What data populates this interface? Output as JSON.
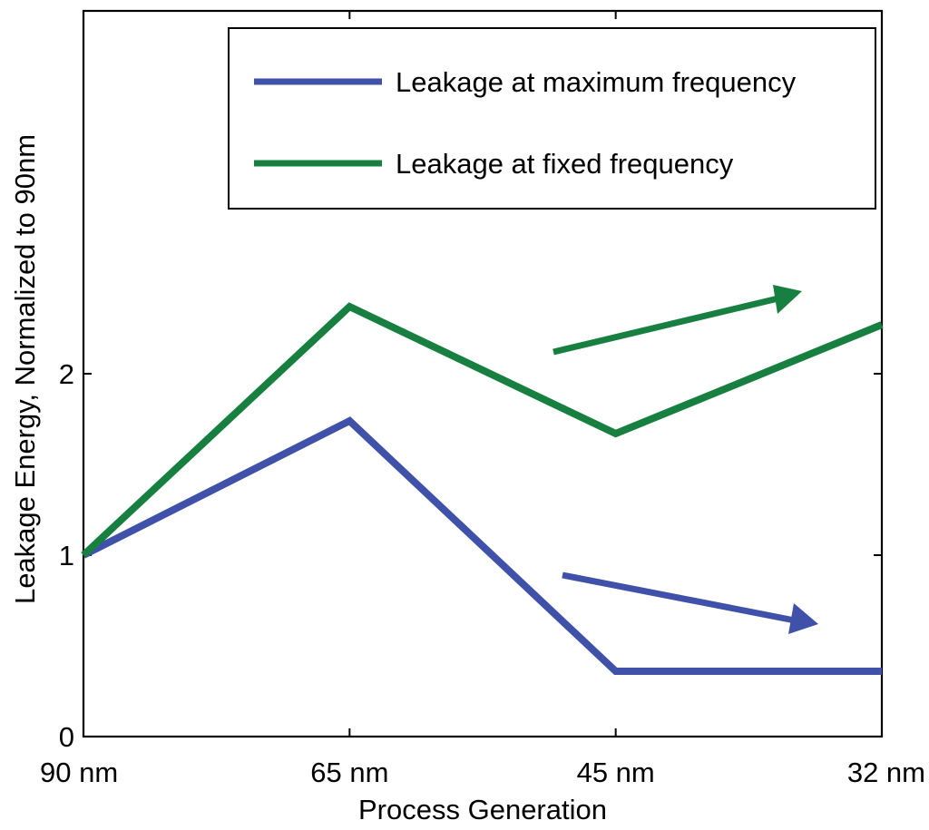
{
  "chart_data": {
    "type": "line",
    "title": "",
    "xlabel": "Process Generation",
    "ylabel": "Leakage Energy, Normalized to 90nm",
    "categories": [
      "90 nm",
      "65 nm",
      "45 nm",
      "32 nm"
    ],
    "ylim": [
      0,
      4
    ],
    "yticks": [
      0,
      1,
      2
    ],
    "grid": false,
    "legend_position": "top-right",
    "series": [
      {
        "name": "Leakage at maximum frequency",
        "color": "#3f51a8",
        "values": [
          1.0,
          1.74,
          0.36,
          0.36
        ]
      },
      {
        "name": "Leakage at fixed frequency",
        "color": "#178040",
        "values": [
          1.0,
          2.37,
          1.67,
          2.27
        ]
      }
    ],
    "annotations": [
      {
        "type": "arrow",
        "series": "Leakage at fixed frequency",
        "direction": "up",
        "color": "#178040"
      },
      {
        "type": "arrow",
        "series": "Leakage at maximum frequency",
        "direction": "down",
        "color": "#3f51a8"
      }
    ]
  }
}
